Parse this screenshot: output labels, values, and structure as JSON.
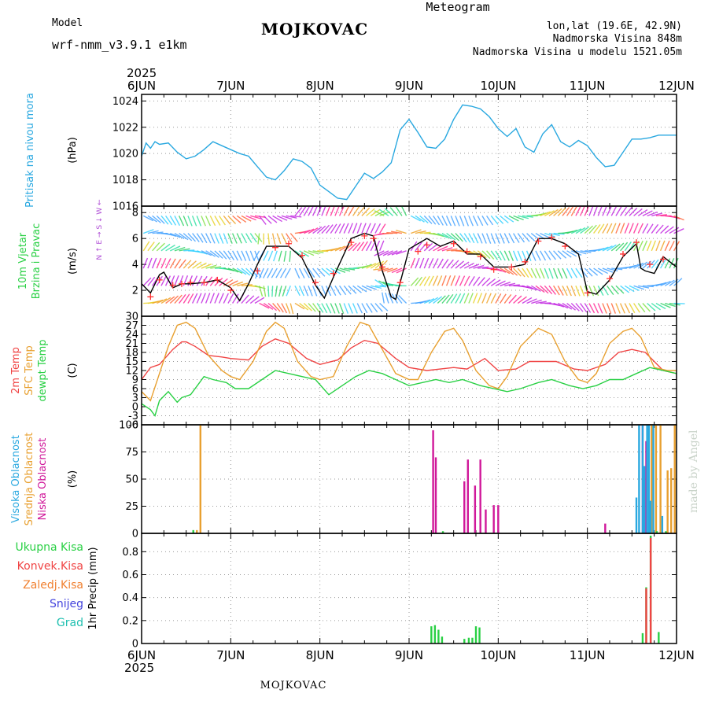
{
  "header": {
    "model_label": "Model",
    "model_name": "wrf-nmm_v3.9.1 e1km",
    "title": "MOJKOVAC",
    "meteogram": "Meteogram",
    "lonlat": "lon,lat (19.6E, 42.9N)",
    "elevation": "Nadmorska Visina 848m",
    "model_elevation": "Nadmorska Visina u modelu 1521.05m",
    "colors": {
      "model": "#b04fd6",
      "title": "#000000",
      "meteogram": "#e8c070",
      "info": "#b04fd6"
    }
  },
  "footer": {
    "station": "MOJKOVAC",
    "credit": "made by Angel"
  },
  "time_axis": {
    "year": "2025",
    "days": [
      "6JUN",
      "7JUN",
      "8JUN",
      "9JUN",
      "10JUN",
      "11JUN",
      "12JUN"
    ]
  },
  "chart_data": [
    {
      "type": "line",
      "id": "pressure",
      "ylabels": [
        {
          "text": "Pritisak na nivou mora",
          "color": "#29a8e0"
        }
      ],
      "unit": "(hPa)",
      "ylim": [
        1016,
        1024.5
      ],
      "yticks": [
        1016,
        1018,
        1020,
        1022,
        1024
      ],
      "grid": true,
      "series": [
        {
          "color": "#29a8e0",
          "x": [
            0,
            0.05,
            0.1,
            0.15,
            0.2,
            0.3,
            0.4,
            0.5,
            0.6,
            0.7,
            0.8,
            0.9,
            1.0,
            1.1,
            1.2,
            1.3,
            1.4,
            1.5,
            1.6,
            1.7,
            1.8,
            1.9,
            2.0,
            2.1,
            2.2,
            2.3,
            2.4,
            2.5,
            2.6,
            2.7,
            2.8,
            2.9,
            3.0,
            3.1,
            3.2,
            3.3,
            3.4,
            3.5,
            3.6,
            3.7,
            3.8,
            3.9,
            4.0,
            4.1,
            4.2,
            4.3,
            4.4,
            4.5,
            4.6,
            4.7,
            4.8,
            4.9,
            5.0,
            5.1,
            5.2,
            5.3,
            5.4,
            5.5,
            5.6,
            5.7,
            5.8,
            5.9,
            6.0
          ],
          "y": [
            1019.8,
            1020.8,
            1020.4,
            1020.9,
            1020.7,
            1020.8,
            1020.1,
            1019.6,
            1019.8,
            1020.3,
            1020.9,
            1020.6,
            1020.3,
            1020.0,
            1019.8,
            1019.0,
            1018.2,
            1018.0,
            1018.7,
            1019.6,
            1019.4,
            1018.9,
            1017.6,
            1017.1,
            1016.6,
            1016.5,
            1017.5,
            1018.5,
            1018.1,
            1018.6,
            1019.3,
            1021.8,
            1022.6,
            1021.6,
            1020.5,
            1020.4,
            1021.1,
            1022.6,
            1023.7,
            1023.6,
            1023.4,
            1022.8,
            1021.9,
            1021.3,
            1021.9,
            1020.5,
            1020.1,
            1021.5,
            1022.2,
            1020.9,
            1020.5,
            1021.0,
            1020.6,
            1019.7,
            1019.0,
            1019.1,
            1020.1,
            1021.1,
            1021.1,
            1021.2,
            1021.4,
            1021.4,
            1021.4
          ]
        }
      ]
    },
    {
      "type": "line",
      "id": "wind",
      "ylabels": [
        {
          "text": "10m Vjetar",
          "color": "#29d044"
        },
        {
          "text": "Brzina i Pravac",
          "color": "#29d044"
        }
      ],
      "unit": "(m/s)",
      "compass_text": "N ↑ E → S ↓ W ←",
      "ylim": [
        0,
        8.5
      ],
      "yticks": [
        2,
        4,
        6,
        8
      ],
      "grid": true,
      "series": [
        {
          "color": "#000000",
          "x": [
            0,
            0.1,
            0.2,
            0.25,
            0.35,
            0.45,
            0.55,
            0.7,
            0.85,
            1.0,
            1.1,
            1.2,
            1.3,
            1.4,
            1.5,
            1.65,
            1.8,
            1.95,
            2.05,
            2.15,
            2.25,
            2.35,
            2.5,
            2.6,
            2.7,
            2.8,
            2.85,
            2.9,
            3.0,
            3.1,
            3.2,
            3.35,
            3.5,
            3.65,
            3.8,
            3.95,
            4.05,
            4.15,
            4.3,
            4.45,
            4.6,
            4.75,
            4.9,
            5.0,
            5.1,
            5.25,
            5.4,
            5.55,
            5.6,
            5.65,
            5.75,
            5.85,
            6.0
          ],
          "y": [
            2.5,
            1.8,
            3.2,
            3.4,
            2.2,
            2.5,
            2.5,
            2.6,
            2.8,
            2.2,
            1.2,
            2.5,
            4.0,
            5.4,
            5.4,
            5.4,
            4.5,
            2.4,
            1.4,
            3.0,
            4.5,
            6.0,
            6.4,
            6.2,
            3.5,
            1.5,
            1.3,
            2.6,
            5.2,
            5.6,
            6.0,
            5.4,
            5.8,
            4.8,
            4.8,
            3.8,
            3.8,
            3.8,
            4.0,
            6.0,
            6.0,
            5.6,
            4.8,
            1.9,
            1.7,
            2.8,
            4.6,
            5.6,
            3.7,
            3.5,
            3.3,
            4.6,
            3.8
          ]
        },
        {
          "color": "#ff3333",
          "marker": "+",
          "x": [
            0.1,
            0.2,
            0.35,
            0.45,
            0.55,
            0.7,
            0.85,
            1.0,
            1.3,
            1.5,
            1.65,
            1.8,
            1.95,
            2.15,
            2.35,
            2.5,
            2.6,
            2.7,
            2.9,
            3.1,
            3.2,
            3.5,
            3.65,
            3.8,
            3.95,
            4.15,
            4.3,
            4.45,
            4.6,
            4.75,
            5.0,
            5.25,
            5.4,
            5.55,
            5.7,
            5.85
          ],
          "y": [
            1.5,
            2.8,
            2.4,
            2.5,
            2.6,
            2.6,
            2.8,
            2.0,
            3.5,
            5.3,
            5.6,
            4.7,
            2.6,
            3.3,
            5.7,
            6.2,
            6.0,
            3.8,
            2.6,
            5.0,
            5.5,
            5.6,
            5.0,
            4.6,
            3.6,
            3.8,
            4.2,
            5.8,
            6.1,
            5.4,
            1.8,
            2.9,
            4.8,
            5.7,
            4.0,
            4.4
          ]
        }
      ]
    },
    {
      "type": "line",
      "id": "temperature",
      "ylabels": [
        {
          "text": "2m Temp",
          "color": "#f04444"
        },
        {
          "text": "SFC Temp",
          "color": "#e8a030"
        },
        {
          "text": "dewpt Temp",
          "color": "#29d044"
        }
      ],
      "unit": "(C)",
      "ylim": [
        -6,
        30
      ],
      "yticks": [
        -6,
        -3,
        0,
        3,
        6,
        9,
        12,
        15,
        18,
        21,
        24,
        27,
        30
      ],
      "grid": true,
      "series": [
        {
          "color": "#f04444",
          "x": [
            0,
            0.1,
            0.2,
            0.35,
            0.45,
            0.5,
            0.6,
            0.75,
            0.9,
            1.0,
            1.2,
            1.35,
            1.5,
            1.65,
            1.85,
            2.0,
            2.2,
            2.35,
            2.5,
            2.65,
            2.85,
            3.0,
            3.2,
            3.35,
            3.5,
            3.65,
            3.85,
            4.0,
            4.2,
            4.35,
            4.5,
            4.65,
            4.85,
            5.0,
            5.2,
            5.35,
            5.5,
            5.65,
            5.85,
            6.0
          ],
          "y": [
            9,
            13,
            14,
            19,
            21.5,
            21.5,
            20,
            17,
            16.5,
            16,
            15.5,
            20,
            22.5,
            21,
            16,
            14,
            15.5,
            19.5,
            22,
            21,
            16,
            13,
            12,
            12.5,
            13,
            12.5,
            16,
            12,
            12.5,
            15,
            15,
            15,
            12.5,
            12,
            14,
            18,
            19,
            18,
            12,
            11
          ]
        },
        {
          "color": "#e8a030",
          "x": [
            0,
            0.1,
            0.2,
            0.3,
            0.4,
            0.5,
            0.6,
            0.75,
            0.9,
            1.0,
            1.1,
            1.25,
            1.4,
            1.5,
            1.6,
            1.75,
            1.9,
            2.0,
            2.15,
            2.3,
            2.45,
            2.55,
            2.7,
            2.85,
            3.0,
            3.1,
            3.25,
            3.4,
            3.5,
            3.6,
            3.75,
            3.9,
            4.0,
            4.1,
            4.25,
            4.45,
            4.6,
            4.75,
            4.9,
            5.0,
            5.1,
            5.25,
            5.4,
            5.5,
            5.6,
            5.75,
            5.9,
            6.0
          ],
          "y": [
            5,
            2,
            11,
            20,
            27,
            28,
            26,
            17,
            12,
            10,
            9,
            15,
            25,
            28,
            26,
            15,
            10,
            9,
            10,
            20,
            28,
            27,
            19,
            11,
            9,
            9,
            18,
            25,
            26,
            22,
            12,
            7,
            6,
            10,
            20,
            26,
            24,
            15,
            9,
            8,
            11,
            21,
            25,
            26,
            23,
            13,
            12,
            12
          ]
        },
        {
          "color": "#29d044",
          "x": [
            0,
            0.1,
            0.15,
            0.2,
            0.3,
            0.4,
            0.45,
            0.55,
            0.7,
            0.8,
            0.95,
            1.05,
            1.2,
            1.35,
            1.5,
            1.65,
            1.8,
            1.95,
            2.1,
            2.25,
            2.4,
            2.55,
            2.7,
            2.85,
            3.0,
            3.15,
            3.3,
            3.45,
            3.6,
            3.8,
            3.95,
            4.1,
            4.25,
            4.45,
            4.6,
            4.8,
            4.95,
            5.1,
            5.25,
            5.4,
            5.55,
            5.7,
            5.85,
            6.0
          ],
          "y": [
            1,
            -1,
            -3,
            2,
            5,
            1.5,
            3,
            4,
            10,
            9,
            8,
            6,
            6,
            9,
            12,
            11,
            10,
            9,
            4,
            7,
            10,
            12,
            11,
            9,
            7,
            8,
            9,
            8,
            9,
            7,
            6,
            5,
            6,
            8,
            9,
            7,
            6,
            7,
            9,
            9,
            11,
            13,
            12,
            11
          ]
        }
      ]
    },
    {
      "type": "bar",
      "id": "cloud",
      "ylabels": [
        {
          "text": "Visoka Oblacnost",
          "color": "#29a8e0"
        },
        {
          "text": "Srednja Oblacnost",
          "color": "#e8a030"
        },
        {
          "text": "Niska Oblacnost",
          "color": "#d0189a"
        }
      ],
      "unit": "(%)",
      "ylim": [
        0,
        100
      ],
      "yticks": [
        0,
        25,
        50,
        75,
        100
      ],
      "grid": true,
      "series": [
        {
          "color": "#e8a030",
          "x": [
            0.62,
            0.66,
            5.72,
            5.77,
            5.82,
            5.9,
            5.94,
            5.98
          ],
          "values": [
            3,
            100,
            100,
            100,
            100,
            58,
            60,
            100
          ]
        },
        {
          "color": "#d0189a",
          "x": [
            3.27,
            3.3,
            3.62,
            3.66,
            3.74,
            3.8,
            3.86,
            3.95,
            4.0,
            5.2,
            5.62,
            5.66
          ],
          "values": [
            95,
            70,
            48,
            68,
            44,
            68,
            22,
            26,
            26,
            9,
            100,
            85
          ]
        },
        {
          "color": "#29a8e0",
          "x": [
            5.55,
            5.58,
            5.62,
            5.64,
            5.67,
            5.69,
            5.71,
            5.74,
            5.84
          ],
          "values": [
            33,
            100,
            100,
            62,
            100,
            100,
            30,
            100,
            16
          ]
        },
        {
          "color": "#29d044",
          "x": [
            0.58,
            3.38,
            5.78,
            5.88
          ],
          "values": [
            3,
            2,
            2,
            2
          ]
        }
      ]
    },
    {
      "type": "bar",
      "id": "precip",
      "ylabels": [
        {
          "text": "1hr Precip (mm)",
          "color": "#000000"
        }
      ],
      "unit": "",
      "legend": [
        {
          "text": "Ukupna Kisa",
          "color": "#29d044"
        },
        {
          "text": "Konvek.Kisa",
          "color": "#f04444"
        },
        {
          "text": "Zaledj.Kisa",
          "color": "#f08030"
        },
        {
          "text": "Snijeg",
          "color": "#4444dd"
        },
        {
          "text": "Grad",
          "color": "#20c0b0"
        }
      ],
      "ylim": [
        0,
        0.96
      ],
      "yticks": [
        0,
        0.2,
        0.4,
        0.6,
        0.8
      ],
      "grid": true,
      "series": [
        {
          "color": "#29d044",
          "x": [
            3.25,
            3.29,
            3.33,
            3.37,
            3.62,
            3.67,
            3.71,
            3.75,
            3.79,
            5.62,
            5.66,
            5.71,
            5.8
          ],
          "values": [
            0.15,
            0.16,
            0.12,
            0.06,
            0.04,
            0.05,
            0.05,
            0.15,
            0.14,
            0.09,
            0.49,
            0.94,
            0.1
          ]
        },
        {
          "color": "#f04444",
          "x": [
            5.66,
            5.71
          ],
          "values": [
            0.48,
            0.92
          ]
        }
      ]
    }
  ]
}
